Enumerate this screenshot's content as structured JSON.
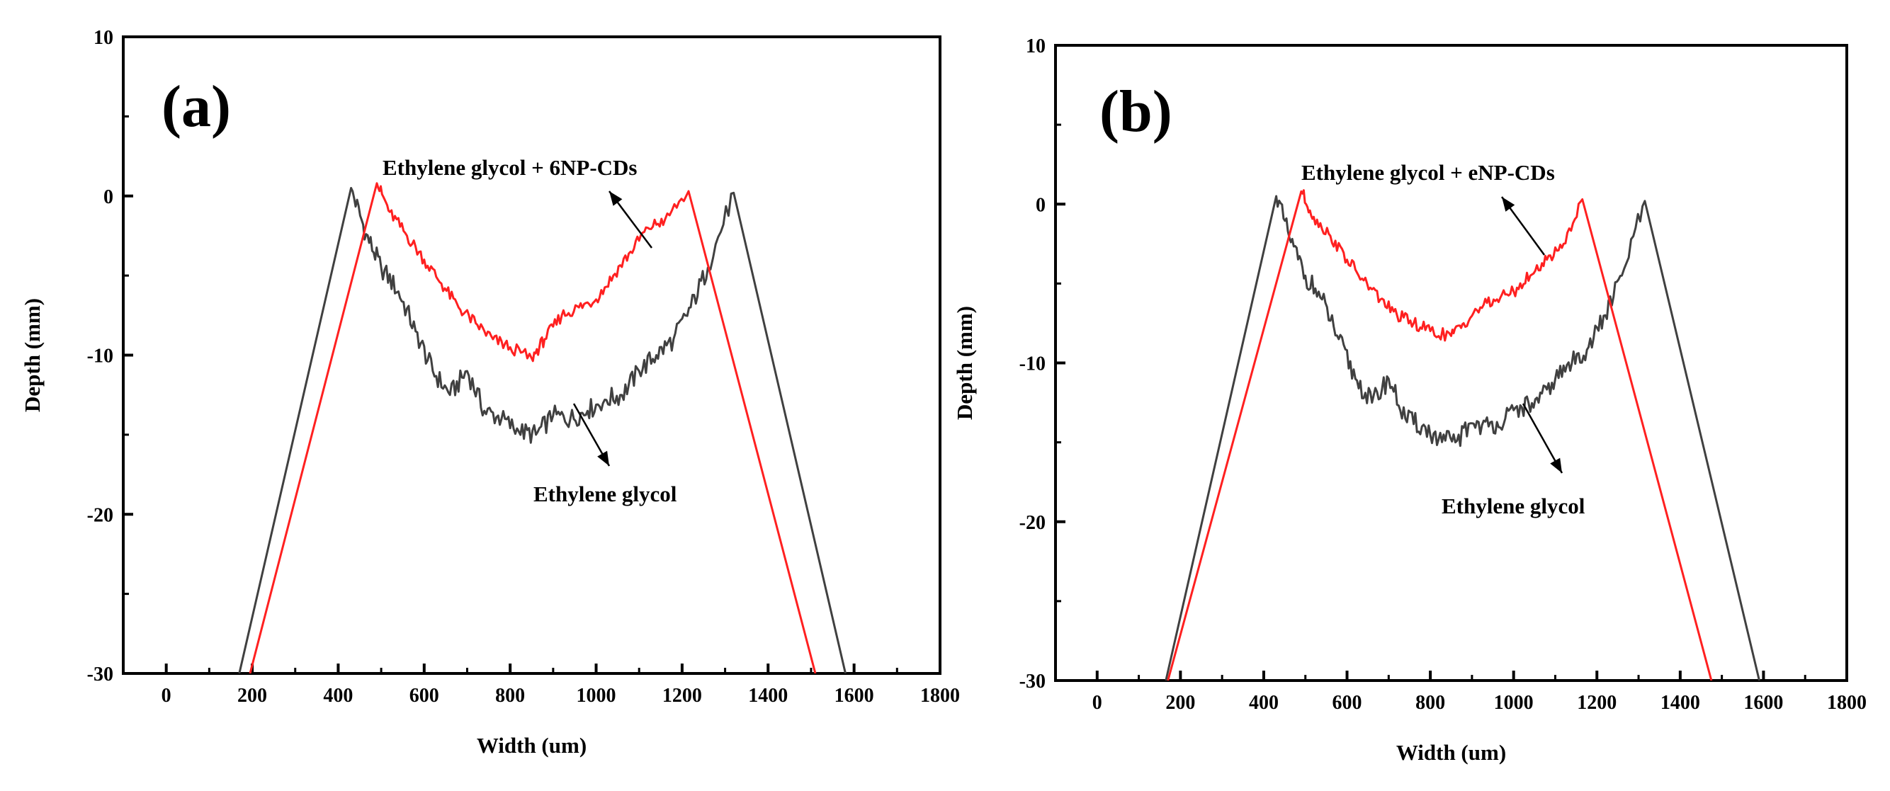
{
  "colors": {
    "ethylene_glycol": "#404040",
    "with_cds": "#ff2020",
    "axis": "#000000"
  },
  "chart_data": [
    {
      "type": "line",
      "panel_label": "(a)",
      "xlabel": "Width (um)",
      "ylabel": "Depth (mm)",
      "xlim": [
        -100,
        1800
      ],
      "ylim": [
        -30,
        10
      ],
      "xticks": [
        0,
        200,
        400,
        600,
        800,
        1000,
        1200,
        1400,
        1600,
        1800
      ],
      "yticks": [
        10,
        0,
        -10,
        -20,
        -30
      ],
      "xtick_labels": [
        "0",
        "200",
        "400",
        "600",
        "800",
        "1000",
        "1200",
        "1400",
        "1600",
        "1800"
      ],
      "ytick_labels": [
        "10",
        "0",
        "-10",
        "-20",
        "-30"
      ],
      "annotations": {
        "upper": "Ethylene glycol + 6NP-CDs",
        "lower": "Ethylene glycol"
      },
      "series": [
        {
          "name": "Ethylene glycol",
          "color": "#404040",
          "x": [
            170,
            430,
            465,
            500,
            540,
            580,
            620,
            660,
            700,
            740,
            780,
            820,
            860,
            900,
            940,
            980,
            1020,
            1060,
            1100,
            1140,
            1180,
            1220,
            1260,
            1320,
            1580
          ],
          "y": [
            -30,
            0.5,
            -2.4,
            -4.5,
            -6.0,
            -8.5,
            -11.0,
            -12.5,
            -11.0,
            -13.5,
            -14.0,
            -14.8,
            -15.0,
            -13.8,
            -14.0,
            -13.5,
            -12.8,
            -12.5,
            -11.0,
            -10.0,
            -9.0,
            -7.0,
            -4.5,
            0.2,
            -30
          ]
        },
        {
          "name": "Ethylene glycol + 6NP-CDs",
          "color": "#ff2020",
          "x": [
            195,
            490,
            520,
            560,
            600,
            640,
            680,
            720,
            760,
            800,
            850,
            880,
            920,
            960,
            1000,
            1040,
            1080,
            1120,
            1160,
            1215,
            1510
          ],
          "y": [
            -30,
            0.8,
            -1.0,
            -2.5,
            -4.0,
            -5.5,
            -7.0,
            -8.0,
            -9.0,
            -9.5,
            -10.2,
            -9.0,
            -7.5,
            -7.0,
            -6.5,
            -5.0,
            -3.5,
            -2.0,
            -1.5,
            0.3,
            -30
          ]
        }
      ]
    },
    {
      "type": "line",
      "panel_label": "(b)",
      "xlabel": "Width (um)",
      "ylabel": "Depth (mm)",
      "xlim": [
        -100,
        1800
      ],
      "ylim": [
        -30,
        10
      ],
      "xticks": [
        0,
        200,
        400,
        600,
        800,
        1000,
        1200,
        1400,
        1600,
        1800
      ],
      "yticks": [
        10,
        0,
        -10,
        -20,
        -30
      ],
      "xtick_labels": [
        "0",
        "200",
        "400",
        "600",
        "800",
        "1000",
        "1200",
        "1400",
        "1600",
        "1800"
      ],
      "ytick_labels": [
        "10",
        "0",
        "-10",
        "-20",
        "-30"
      ],
      "annotations": {
        "upper": "Ethylene glycol + eNP-CDs",
        "lower": "Ethylene glycol"
      },
      "series": [
        {
          "name": "Ethylene glycol",
          "color": "#404040",
          "x": [
            165,
            430,
            465,
            500,
            540,
            580,
            620,
            660,
            700,
            740,
            780,
            820,
            860,
            900,
            940,
            980,
            1020,
            1060,
            1100,
            1140,
            1180,
            1220,
            1260,
            1315,
            1590
          ],
          "y": [
            -30,
            0.5,
            -2.4,
            -4.5,
            -6.0,
            -8.5,
            -11.0,
            -12.5,
            -11.0,
            -13.5,
            -14.0,
            -14.8,
            -15.0,
            -13.8,
            -14.0,
            -13.5,
            -12.8,
            -12.5,
            -11.0,
            -10.0,
            -9.0,
            -7.0,
            -4.5,
            0.2,
            -30
          ]
        },
        {
          "name": "Ethylene glycol + eNP-CDs",
          "color": "#ff2020",
          "x": [
            170,
            490,
            520,
            560,
            600,
            640,
            680,
            720,
            760,
            800,
            850,
            880,
            920,
            960,
            1000,
            1040,
            1080,
            1120,
            1165,
            1475
          ],
          "y": [
            -30,
            0.8,
            -0.8,
            -2.0,
            -3.5,
            -4.8,
            -6.0,
            -7.0,
            -7.5,
            -8.0,
            -8.3,
            -7.5,
            -6.5,
            -6.0,
            -5.5,
            -4.5,
            -3.5,
            -2.5,
            0.3,
            -30
          ]
        }
      ]
    }
  ]
}
